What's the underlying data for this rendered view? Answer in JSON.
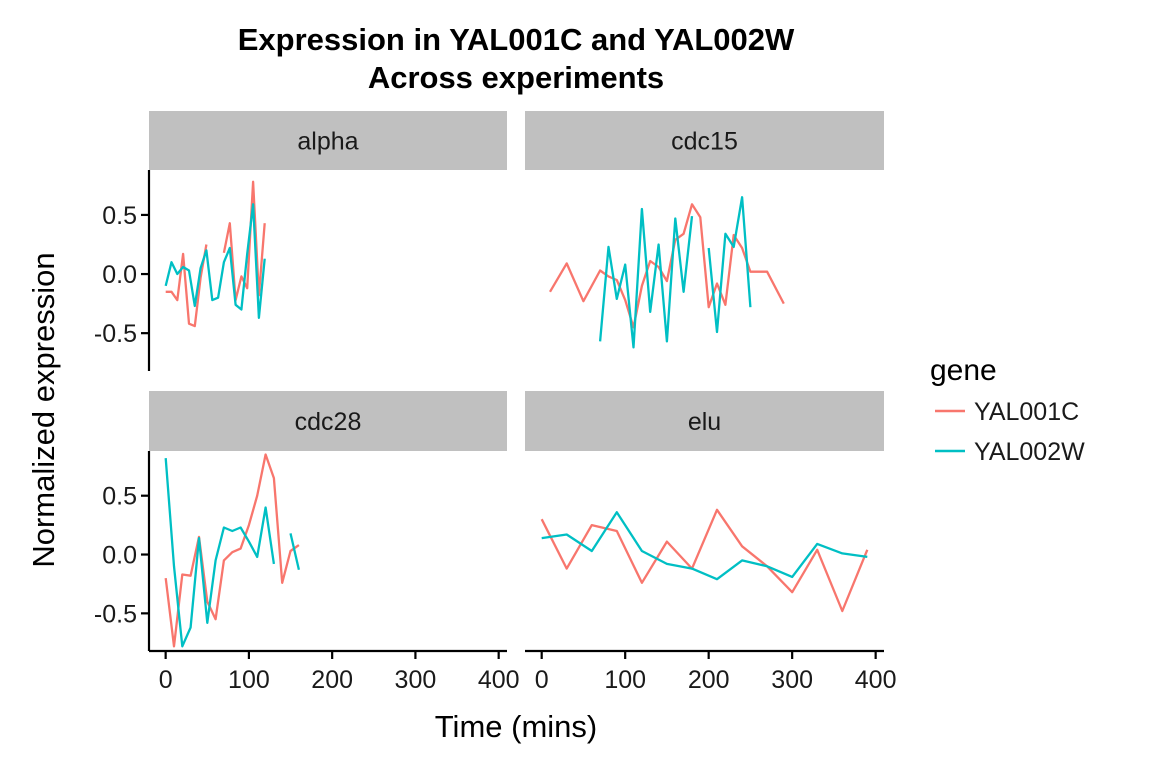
{
  "chart_data": {
    "type": "line",
    "title": "Expression in YAL001C and YAL002W",
    "subtitle": "Across experiments",
    "xlabel": "Time (mins)",
    "ylabel": "Normalized expression",
    "xlim": [
      -20,
      410
    ],
    "ylim": [
      -0.82,
      0.88
    ],
    "x_ticks": [
      0,
      100,
      200,
      300,
      400
    ],
    "y_ticks": [
      -0.5,
      0,
      0.5
    ],
    "y_tick_labels": [
      "-0.5",
      "0.0",
      "0.5"
    ],
    "grid": false,
    "legend": {
      "title": "gene",
      "position": "right",
      "entries": [
        {
          "name": "YAL001C",
          "color": "#F8766D"
        },
        {
          "name": "YAL002W",
          "color": "#00BFC4"
        }
      ]
    },
    "facets": [
      {
        "label": "alpha",
        "series": [
          {
            "name": "YAL001C",
            "segments": [
              [
                [
                  0,
                  -0.15
                ],
                [
                  7,
                  -0.15
                ],
                [
                  14,
                  -0.22
                ],
                [
                  21,
                  0.17
                ],
                [
                  28,
                  -0.42
                ],
                [
                  35,
                  -0.44
                ],
                [
                  42,
                  -0.03
                ],
                [
                  49,
                  0.25
                ]
              ],
              [
                [
                  70,
                  0.18
                ],
                [
                  77,
                  0.43
                ],
                [
                  84,
                  -0.22
                ],
                [
                  91,
                  -0.02
                ],
                [
                  98,
                  -0.12
                ],
                [
                  105,
                  0.78
                ],
                [
                  112,
                  -0.18
                ],
                [
                  119,
                  0.43
                ]
              ]
            ]
          },
          {
            "name": "YAL002W",
            "segments": [
              [
                [
                  0,
                  -0.1
                ],
                [
                  7,
                  0.1
                ],
                [
                  14,
                  0.0
                ],
                [
                  21,
                  0.06
                ],
                [
                  28,
                  0.03
                ],
                [
                  35,
                  -0.27
                ],
                [
                  42,
                  0.05
                ],
                [
                  49,
                  0.2
                ],
                [
                  56,
                  -0.22
                ],
                [
                  63,
                  -0.2
                ],
                [
                  70,
                  0.1
                ],
                [
                  77,
                  0.22
                ],
                [
                  84,
                  -0.26
                ],
                [
                  91,
                  -0.3
                ],
                [
                  98,
                  0.17
                ],
                [
                  105,
                  0.59
                ],
                [
                  112,
                  -0.37
                ],
                [
                  119,
                  0.13
                ]
              ]
            ]
          }
        ]
      },
      {
        "label": "cdc15",
        "series": [
          {
            "name": "YAL001C",
            "segments": [
              [
                [
                  10,
                  -0.15
                ],
                [
                  30,
                  0.09
                ],
                [
                  50,
                  -0.23
                ],
                [
                  70,
                  0.03
                ],
                [
                  80,
                  -0.02
                ],
                [
                  90,
                  -0.05
                ],
                [
                  100,
                  -0.22
                ],
                [
                  110,
                  -0.45
                ],
                [
                  120,
                  -0.1
                ],
                [
                  130,
                  0.11
                ],
                [
                  140,
                  0.06
                ],
                [
                  150,
                  -0.06
                ],
                [
                  160,
                  0.29
                ],
                [
                  170,
                  0.34
                ],
                [
                  180,
                  0.59
                ],
                [
                  190,
                  0.48
                ],
                [
                  200,
                  -0.28
                ],
                [
                  210,
                  -0.08
                ],
                [
                  220,
                  -0.26
                ],
                [
                  230,
                  0.33
                ],
                [
                  240,
                  0.22
                ],
                [
                  250,
                  0.02
                ],
                [
                  270,
                  0.02
                ],
                [
                  290,
                  -0.25
                ]
              ]
            ]
          },
          {
            "name": "YAL002W",
            "segments": [
              [
                [
                  70,
                  -0.57
                ],
                [
                  80,
                  0.23
                ],
                [
                  90,
                  -0.21
                ],
                [
                  100,
                  0.08
                ],
                [
                  110,
                  -0.62
                ],
                [
                  120,
                  0.55
                ],
                [
                  130,
                  -0.32
                ],
                [
                  140,
                  0.25
                ],
                [
                  150,
                  -0.57
                ],
                [
                  160,
                  0.47
                ],
                [
                  170,
                  -0.15
                ],
                [
                  180,
                  0.49
                ]
              ],
              [
                [
                  200,
                  0.22
                ],
                [
                  210,
                  -0.49
                ],
                [
                  220,
                  0.34
                ],
                [
                  230,
                  0.23
                ],
                [
                  240,
                  0.65
                ],
                [
                  250,
                  -0.28
                ]
              ]
            ]
          }
        ]
      },
      {
        "label": "cdc28",
        "series": [
          {
            "name": "YAL001C",
            "segments": [
              [
                [
                  0,
                  -0.2
                ],
                [
                  10,
                  -0.78
                ],
                [
                  20,
                  -0.17
                ],
                [
                  30,
                  -0.18
                ],
                [
                  40,
                  0.15
                ],
                [
                  50,
                  -0.4
                ],
                [
                  60,
                  -0.55
                ],
                [
                  70,
                  -0.05
                ],
                [
                  80,
                  0.02
                ],
                [
                  90,
                  0.05
                ],
                [
                  100,
                  0.25
                ],
                [
                  110,
                  0.5
                ],
                [
                  120,
                  0.85
                ],
                [
                  130,
                  0.65
                ],
                [
                  140,
                  -0.24
                ],
                [
                  150,
                  0.03
                ],
                [
                  160,
                  0.08
                ]
              ]
            ]
          },
          {
            "name": "YAL002W",
            "segments": [
              [
                [
                  0,
                  0.82
                ],
                [
                  10,
                  -0.1
                ],
                [
                  20,
                  -0.78
                ],
                [
                  30,
                  -0.62
                ],
                [
                  40,
                  0.14
                ],
                [
                  50,
                  -0.58
                ],
                [
                  60,
                  -0.05
                ],
                [
                  70,
                  0.23
                ],
                [
                  80,
                  0.2
                ],
                [
                  90,
                  0.23
                ],
                [
                  100,
                  0.11
                ],
                [
                  110,
                  -0.02
                ],
                [
                  120,
                  0.4
                ],
                [
                  130,
                  -0.08
                ]
              ],
              [
                [
                  150,
                  0.18
                ],
                [
                  160,
                  -0.13
                ]
              ]
            ]
          }
        ]
      },
      {
        "label": "elu",
        "series": [
          {
            "name": "YAL001C",
            "segments": [
              [
                [
                  0,
                  0.3
                ],
                [
                  30,
                  -0.12
                ],
                [
                  60,
                  0.25
                ],
                [
                  90,
                  0.2
                ],
                [
                  120,
                  -0.24
                ],
                [
                  150,
                  0.11
                ],
                [
                  180,
                  -0.12
                ],
                [
                  210,
                  0.38
                ],
                [
                  240,
                  0.07
                ],
                [
                  270,
                  -0.1
                ],
                [
                  300,
                  -0.32
                ],
                [
                  330,
                  0.04
                ],
                [
                  360,
                  -0.48
                ],
                [
                  390,
                  0.04
                ]
              ]
            ]
          },
          {
            "name": "YAL002W",
            "segments": [
              [
                [
                  0,
                  0.14
                ],
                [
                  30,
                  0.17
                ],
                [
                  60,
                  0.03
                ],
                [
                  90,
                  0.36
                ],
                [
                  120,
                  0.03
                ],
                [
                  150,
                  -0.08
                ],
                [
                  180,
                  -0.12
                ],
                [
                  210,
                  -0.21
                ],
                [
                  240,
                  -0.05
                ],
                [
                  270,
                  -0.1
                ],
                [
                  300,
                  -0.19
                ],
                [
                  330,
                  0.09
                ],
                [
                  360,
                  0.01
                ],
                [
                  390,
                  -0.02
                ]
              ]
            ]
          }
        ]
      }
    ]
  }
}
